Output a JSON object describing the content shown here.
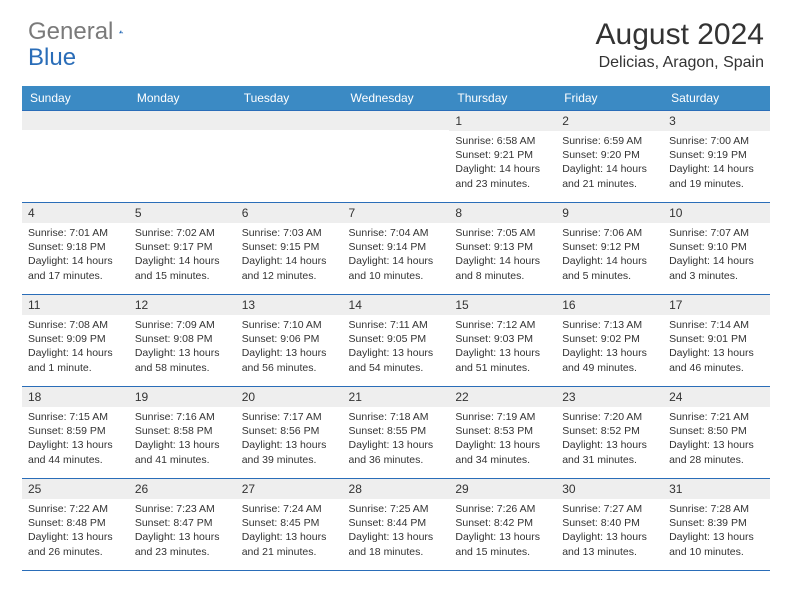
{
  "brand": {
    "part1": "General",
    "part2": "Blue"
  },
  "title": "August 2024",
  "location": "Delicias, Aragon, Spain",
  "colors": {
    "header_bg": "#3b8ac4",
    "border": "#2a6db8",
    "daynum_bg": "#eeeeee",
    "text": "#333333",
    "logo_gray": "#7a7a7a",
    "logo_blue": "#2a6db8"
  },
  "days_of_week": [
    "Sunday",
    "Monday",
    "Tuesday",
    "Wednesday",
    "Thursday",
    "Friday",
    "Saturday"
  ],
  "weeks": [
    [
      null,
      null,
      null,
      null,
      {
        "n": "1",
        "sr": "6:58 AM",
        "ss": "9:21 PM",
        "dl": "14 hours and 23 minutes."
      },
      {
        "n": "2",
        "sr": "6:59 AM",
        "ss": "9:20 PM",
        "dl": "14 hours and 21 minutes."
      },
      {
        "n": "3",
        "sr": "7:00 AM",
        "ss": "9:19 PM",
        "dl": "14 hours and 19 minutes."
      }
    ],
    [
      {
        "n": "4",
        "sr": "7:01 AM",
        "ss": "9:18 PM",
        "dl": "14 hours and 17 minutes."
      },
      {
        "n": "5",
        "sr": "7:02 AM",
        "ss": "9:17 PM",
        "dl": "14 hours and 15 minutes."
      },
      {
        "n": "6",
        "sr": "7:03 AM",
        "ss": "9:15 PM",
        "dl": "14 hours and 12 minutes."
      },
      {
        "n": "7",
        "sr": "7:04 AM",
        "ss": "9:14 PM",
        "dl": "14 hours and 10 minutes."
      },
      {
        "n": "8",
        "sr": "7:05 AM",
        "ss": "9:13 PM",
        "dl": "14 hours and 8 minutes."
      },
      {
        "n": "9",
        "sr": "7:06 AM",
        "ss": "9:12 PM",
        "dl": "14 hours and 5 minutes."
      },
      {
        "n": "10",
        "sr": "7:07 AM",
        "ss": "9:10 PM",
        "dl": "14 hours and 3 minutes."
      }
    ],
    [
      {
        "n": "11",
        "sr": "7:08 AM",
        "ss": "9:09 PM",
        "dl": "14 hours and 1 minute."
      },
      {
        "n": "12",
        "sr": "7:09 AM",
        "ss": "9:08 PM",
        "dl": "13 hours and 58 minutes."
      },
      {
        "n": "13",
        "sr": "7:10 AM",
        "ss": "9:06 PM",
        "dl": "13 hours and 56 minutes."
      },
      {
        "n": "14",
        "sr": "7:11 AM",
        "ss": "9:05 PM",
        "dl": "13 hours and 54 minutes."
      },
      {
        "n": "15",
        "sr": "7:12 AM",
        "ss": "9:03 PM",
        "dl": "13 hours and 51 minutes."
      },
      {
        "n": "16",
        "sr": "7:13 AM",
        "ss": "9:02 PM",
        "dl": "13 hours and 49 minutes."
      },
      {
        "n": "17",
        "sr": "7:14 AM",
        "ss": "9:01 PM",
        "dl": "13 hours and 46 minutes."
      }
    ],
    [
      {
        "n": "18",
        "sr": "7:15 AM",
        "ss": "8:59 PM",
        "dl": "13 hours and 44 minutes."
      },
      {
        "n": "19",
        "sr": "7:16 AM",
        "ss": "8:58 PM",
        "dl": "13 hours and 41 minutes."
      },
      {
        "n": "20",
        "sr": "7:17 AM",
        "ss": "8:56 PM",
        "dl": "13 hours and 39 minutes."
      },
      {
        "n": "21",
        "sr": "7:18 AM",
        "ss": "8:55 PM",
        "dl": "13 hours and 36 minutes."
      },
      {
        "n": "22",
        "sr": "7:19 AM",
        "ss": "8:53 PM",
        "dl": "13 hours and 34 minutes."
      },
      {
        "n": "23",
        "sr": "7:20 AM",
        "ss": "8:52 PM",
        "dl": "13 hours and 31 minutes."
      },
      {
        "n": "24",
        "sr": "7:21 AM",
        "ss": "8:50 PM",
        "dl": "13 hours and 28 minutes."
      }
    ],
    [
      {
        "n": "25",
        "sr": "7:22 AM",
        "ss": "8:48 PM",
        "dl": "13 hours and 26 minutes."
      },
      {
        "n": "26",
        "sr": "7:23 AM",
        "ss": "8:47 PM",
        "dl": "13 hours and 23 minutes."
      },
      {
        "n": "27",
        "sr": "7:24 AM",
        "ss": "8:45 PM",
        "dl": "13 hours and 21 minutes."
      },
      {
        "n": "28",
        "sr": "7:25 AM",
        "ss": "8:44 PM",
        "dl": "13 hours and 18 minutes."
      },
      {
        "n": "29",
        "sr": "7:26 AM",
        "ss": "8:42 PM",
        "dl": "13 hours and 15 minutes."
      },
      {
        "n": "30",
        "sr": "7:27 AM",
        "ss": "8:40 PM",
        "dl": "13 hours and 13 minutes."
      },
      {
        "n": "31",
        "sr": "7:28 AM",
        "ss": "8:39 PM",
        "dl": "13 hours and 10 minutes."
      }
    ]
  ],
  "labels": {
    "sunrise": "Sunrise:",
    "sunset": "Sunset:",
    "daylight": "Daylight:"
  }
}
